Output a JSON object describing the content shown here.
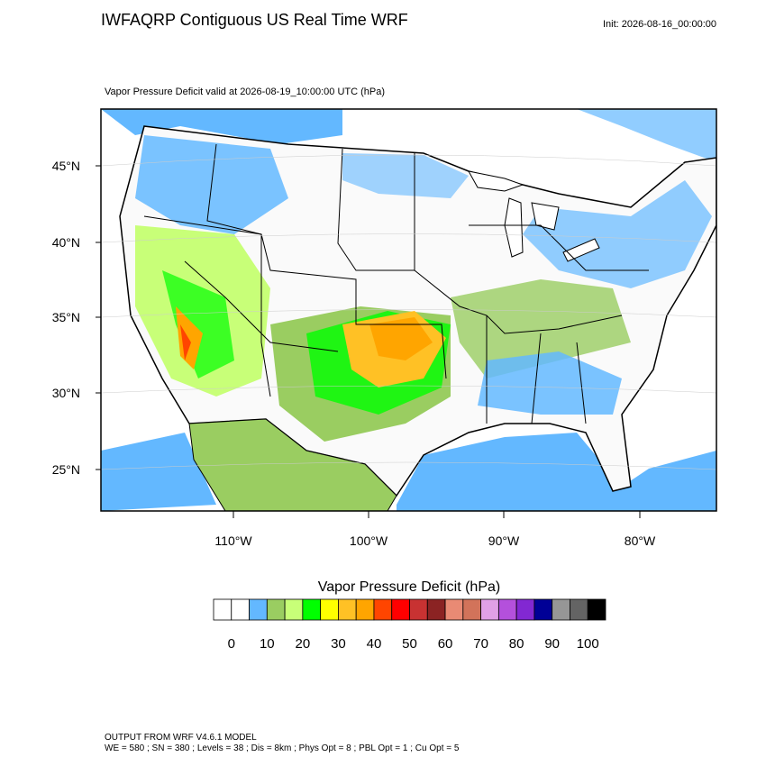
{
  "header": {
    "title": "IWFAQRP Contiguous US Real Time WRF",
    "init": "Init: 2026-08-16_00:00:00"
  },
  "map": {
    "subtitle": "Vapor Pressure Deficit valid at 2026-08-19_10:00:00 UTC   (hPa)",
    "lat_labels": [
      "45°N",
      "40°N",
      "35°N",
      "30°N",
      "25°N"
    ],
    "lon_labels": [
      "110°W",
      "100°W",
      "90°W",
      "80°W"
    ]
  },
  "colorbar": {
    "title": "Vapor Pressure Deficit  (hPa)",
    "colors": [
      "#ffffff",
      "#ffffff",
      "#63b8ff",
      "#9acd61",
      "#c8ff78",
      "#00ff00",
      "#ffff00",
      "#ffc125",
      "#ffa500",
      "#ff4500",
      "#ff0000",
      "#c83232",
      "#8b2323",
      "#e98a74",
      "#d2735a",
      "#e1a0e6",
      "#b450dc",
      "#8228d2",
      "#000096",
      "#969696",
      "#646464",
      "#000000"
    ],
    "labels": [
      0,
      10,
      20,
      30,
      40,
      50,
      60,
      70,
      80,
      90,
      100
    ]
  },
  "footer": {
    "lines": [
      "OUTPUT FROM WRF V4.6.1 MODEL",
      "WE = 580 ; SN = 380 ; Levels = 38 ; Dis = 8km ; Phys Opt = 8 ; PBL Opt = 1 ; Cu Opt = 5"
    ]
  }
}
